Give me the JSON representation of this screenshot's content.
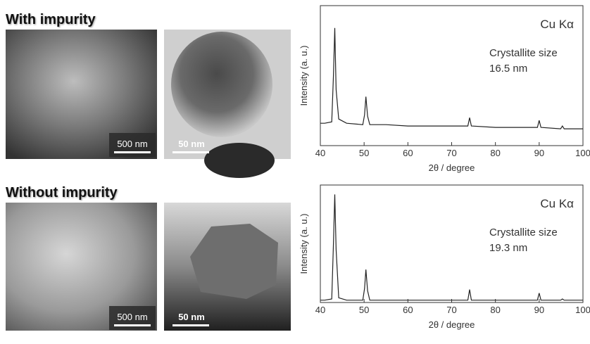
{
  "chart_data": [
    {
      "type": "line",
      "heading": "With impurity",
      "scale_bars": [
        "500 nm",
        "50 nm"
      ],
      "annotations": [
        "Cu Kα",
        "Crystallite size",
        "16.5 nm"
      ],
      "x_label": "2θ / degree",
      "y_label": "Intensity (a. u.)",
      "x": [
        40,
        41,
        42.6,
        43.0,
        43.3,
        43.6,
        44.2,
        46,
        49.7,
        50.1,
        50.4,
        50.8,
        51.3,
        55,
        60,
        65,
        70,
        73.7,
        74.1,
        74.5,
        80,
        85,
        89.6,
        90,
        90.4,
        94.9,
        95.3,
        95.7,
        100
      ],
      "values": [
        16,
        16,
        17,
        50,
        84,
        40,
        19,
        16,
        15,
        22,
        35,
        21,
        15,
        15,
        14,
        14,
        14,
        14,
        20,
        14,
        13,
        13,
        13,
        18,
        13,
        12,
        14,
        12,
        12
      ],
      "color": "#222222",
      "xlim": [
        40,
        100
      ],
      "xticks": [
        40,
        50,
        60,
        70,
        80,
        90,
        100
      ],
      "ylim": [
        0,
        100
      ]
    },
    {
      "type": "line",
      "heading": "Without impurity",
      "scale_bars": [
        "500 nm",
        "50 nm"
      ],
      "annotations": [
        "Cu Kα",
        "Crystallite size",
        "19.3 nm"
      ],
      "x_label": "2θ / degree",
      "y_label": "Intensity (a. u.)",
      "x": [
        40,
        41,
        42.6,
        43.0,
        43.3,
        43.6,
        44.2,
        46,
        49.7,
        50.1,
        50.4,
        50.8,
        51.3,
        55,
        60,
        65,
        70,
        73.7,
        74.1,
        74.5,
        80,
        85,
        89.6,
        90,
        90.4,
        94.9,
        95.3,
        95.7,
        100
      ],
      "values": [
        2,
        2,
        3,
        50,
        92,
        45,
        4,
        2,
        2,
        12,
        28,
        10,
        2,
        2,
        2,
        2,
        2,
        2,
        11,
        2,
        2,
        2,
        2,
        8,
        2,
        2,
        3,
        2,
        2
      ],
      "color": "#222222",
      "xlim": [
        40,
        100
      ],
      "xticks": [
        40,
        50,
        60,
        70,
        80,
        90,
        100
      ],
      "ylim": [
        0,
        100
      ]
    }
  ]
}
